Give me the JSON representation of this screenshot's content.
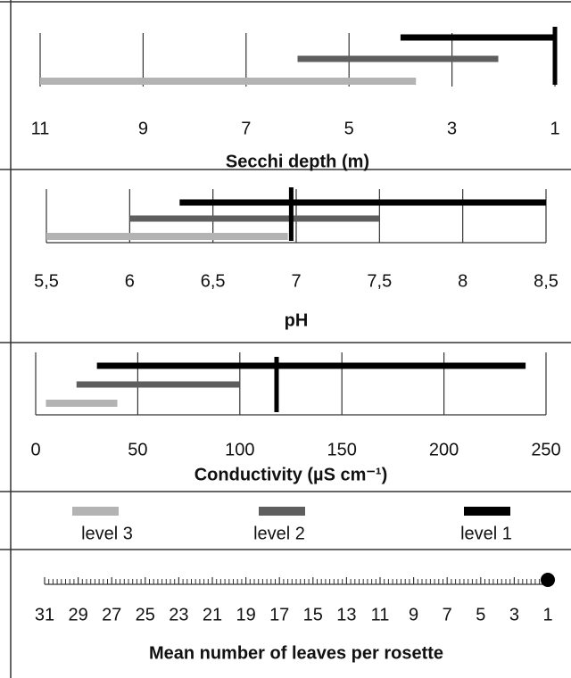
{
  "legend": [
    {
      "name": "level 3",
      "color": "#b3b3b3"
    },
    {
      "name": "level 2",
      "color": "#5e5e5e"
    },
    {
      "name": "level 1",
      "color": "#000000"
    }
  ],
  "chart_data": [
    {
      "type": "range",
      "xlabel": "Secchi depth (m)",
      "xlim": [
        11,
        1
      ],
      "xticks": [
        11,
        9,
        7,
        5,
        3,
        1
      ],
      "grid": true,
      "series": [
        {
          "values": [
            11,
            3.7
          ]
        },
        {
          "values": [
            6,
            2.1
          ]
        },
        {
          "values": [
            4,
            1
          ]
        }
      ],
      "marker": 1
    },
    {
      "type": "range",
      "xlabel": "pH",
      "xlim": [
        5.5,
        8.5
      ],
      "xticks": [
        {
          "value": 5.5,
          "label": "5,5"
        },
        6,
        {
          "value": 6.5,
          "label": "6,5"
        },
        7,
        {
          "value": 7.5,
          "label": "7,5"
        },
        8,
        {
          "value": 8.5,
          "label": "8,5"
        }
      ],
      "grid": true,
      "series": [
        {
          "values": [
            5.5,
            6.95
          ]
        },
        {
          "values": [
            6,
            7.5
          ]
        },
        {
          "values": [
            6.3,
            8.5
          ]
        }
      ],
      "marker": 6.97
    },
    {
      "type": "range",
      "xlabel": "Conductivity (µS cm⁻¹)",
      "xlim": [
        0,
        250
      ],
      "xticks": [
        0,
        50,
        100,
        150,
        200,
        250
      ],
      "grid": true,
      "series": [
        {
          "values": [
            5,
            40
          ]
        },
        {
          "values": [
            20,
            100
          ]
        },
        {
          "values": [
            30,
            240
          ]
        }
      ],
      "marker": 118
    },
    {
      "type": "dot",
      "xlabel": "Mean number of leaves per rosette",
      "xlim": [
        31,
        1
      ],
      "xticks": [
        31,
        29,
        27,
        25,
        23,
        21,
        19,
        17,
        15,
        13,
        11,
        9,
        7,
        5,
        3,
        1
      ],
      "values": [
        1
      ]
    }
  ]
}
